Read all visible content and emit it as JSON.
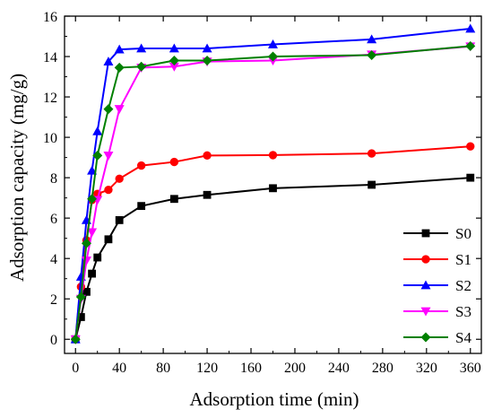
{
  "chart_data": {
    "type": "line",
    "title": "",
    "xlabel": "Adsorption time (min)",
    "ylabel": "Adsorption capacity (mg/g)",
    "xlim": [
      -10,
      370
    ],
    "ylim": [
      -0.7,
      16
    ],
    "xticks": [
      0,
      40,
      80,
      120,
      160,
      200,
      240,
      280,
      320,
      360
    ],
    "yticks": [
      0,
      2,
      4,
      6,
      8,
      10,
      12,
      14,
      16
    ],
    "xtick_labels": [
      "0",
      "40",
      "80",
      "120",
      "160",
      "200",
      "240",
      "280",
      "320",
      "360"
    ],
    "ytick_labels": [
      "0",
      "2",
      "4",
      "6",
      "8",
      "10",
      "12",
      "14",
      "16"
    ],
    "grid": false,
    "legend_position": "bottom-right",
    "x": [
      0,
      5,
      10,
      15,
      20,
      30,
      40,
      60,
      90,
      120,
      180,
      270,
      360
    ],
    "series": [
      {
        "name": "S0",
        "color": "#000000",
        "marker": "square",
        "values": [
          0,
          1.1,
          2.35,
          3.25,
          4.05,
          4.95,
          5.9,
          6.6,
          6.95,
          7.15,
          7.48,
          7.65,
          8.0
        ]
      },
      {
        "name": "S1",
        "color": "#ff0000",
        "marker": "circle",
        "values": [
          0,
          2.6,
          4.9,
          6.9,
          7.2,
          7.4,
          7.95,
          8.6,
          8.78,
          9.1,
          9.12,
          9.2,
          9.55
        ]
      },
      {
        "name": "S2",
        "color": "#0000ff",
        "marker": "triangle-up",
        "values": [
          0,
          3.1,
          5.9,
          8.35,
          10.3,
          13.75,
          14.35,
          14.4,
          14.4,
          14.4,
          14.6,
          14.85,
          15.38
        ]
      },
      {
        "name": "S3",
        "color": "#ff00ff",
        "marker": "triangle-down",
        "values": [
          0,
          2.0,
          3.9,
          5.3,
          6.9,
          9.1,
          11.4,
          13.45,
          13.5,
          13.75,
          13.8,
          14.1,
          14.5
        ]
      },
      {
        "name": "S4",
        "color": "#008000",
        "marker": "diamond",
        "values": [
          0,
          2.1,
          4.75,
          6.95,
          9.1,
          11.4,
          13.45,
          13.5,
          13.8,
          13.8,
          14.0,
          14.07,
          14.52
        ]
      }
    ]
  }
}
